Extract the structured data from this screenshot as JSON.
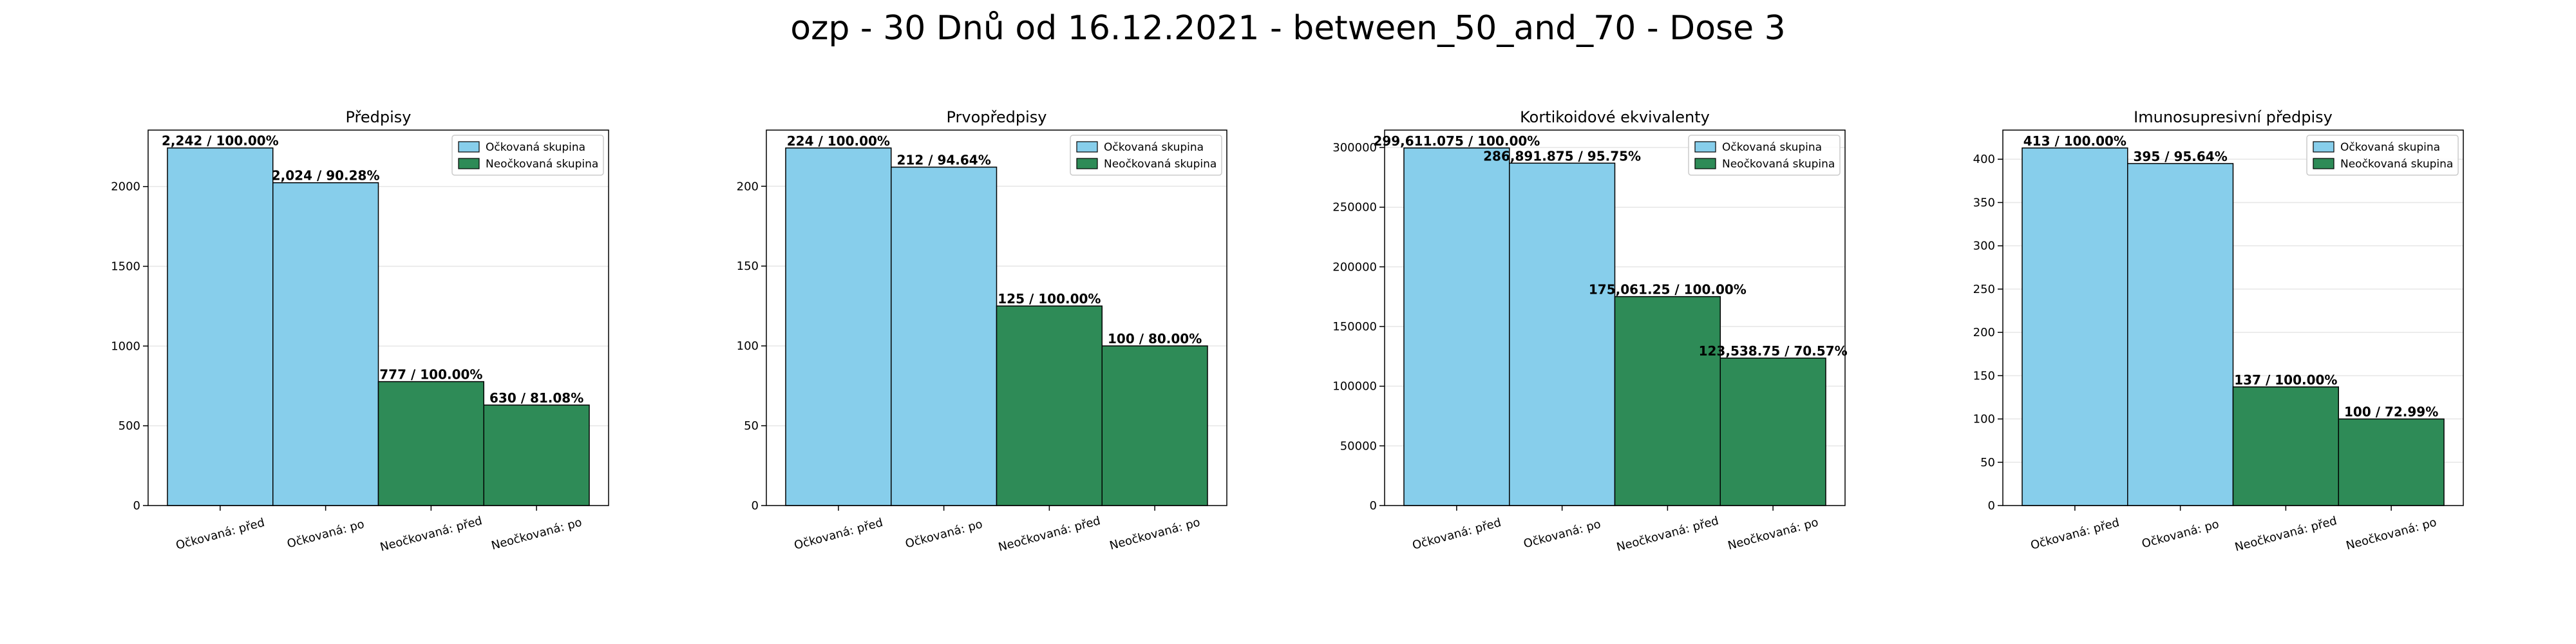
{
  "figure": {
    "suptitle": "ozp - 30 Dnů od 16.12.2021 - between_50_and_70 - Dose 3"
  },
  "colors": {
    "vaccinated": "#87CEEB",
    "unvaccinated": "#2E8B57",
    "bar_edge": "#000000",
    "grid": "#e6e6e6"
  },
  "chart_data": [
    {
      "type": "bar",
      "title": "Předpisy",
      "categories": [
        "Očkovaná: před",
        "Očkovaná: po",
        "Neočkovaná: před",
        "Neočkovaná: po"
      ],
      "values": [
        2242,
        2024,
        777,
        630
      ],
      "value_labels": [
        "2,242 / 100.00%",
        "2,024 / 90.28%",
        "777 / 100.00%",
        "630 / 81.08%"
      ],
      "bar_groups": [
        "vaccinated",
        "vaccinated",
        "unvaccinated",
        "unvaccinated"
      ],
      "yticks": [
        "0",
        "500",
        "1000",
        "1500",
        "2000"
      ],
      "ytick_values": [
        0,
        500,
        1000,
        1500,
        2000
      ],
      "ylim": [
        0,
        2354
      ],
      "legend": [
        "Očkovaná skupina",
        "Neočkovaná skupina"
      ],
      "legend_position": "top-right",
      "grid": true
    },
    {
      "type": "bar",
      "title": "Prvopředpisy",
      "categories": [
        "Očkovaná: před",
        "Očkovaná: po",
        "Neočkovaná: před",
        "Neočkovaná: po"
      ],
      "values": [
        224,
        212,
        125,
        100
      ],
      "value_labels": [
        "224 / 100.00%",
        "212 / 94.64%",
        "125 / 100.00%",
        "100 / 80.00%"
      ],
      "bar_groups": [
        "vaccinated",
        "vaccinated",
        "unvaccinated",
        "unvaccinated"
      ],
      "yticks": [
        "0",
        "50",
        "100",
        "150",
        "200"
      ],
      "ytick_values": [
        0,
        50,
        100,
        150,
        200
      ],
      "ylim": [
        0,
        235.2
      ],
      "legend": [
        "Očkovaná skupina",
        "Neočkovaná skupina"
      ],
      "legend_position": "top-right",
      "grid": true
    },
    {
      "type": "bar",
      "title": "Kortikoidové ekvivalenty",
      "categories": [
        "Očkovaná: před",
        "Očkovaná: po",
        "Neočkovaná: před",
        "Neočkovaná: po"
      ],
      "values": [
        299611.075,
        286891.875,
        175061.25,
        123538.75
      ],
      "value_labels": [
        "299,611.075 / 100.00%",
        "286,891.875 / 95.75%",
        "175,061.25 / 100.00%",
        "123,538.75 / 70.57%"
      ],
      "bar_groups": [
        "vaccinated",
        "vaccinated",
        "unvaccinated",
        "unvaccinated"
      ],
      "yticks": [
        "0",
        "50000",
        "100000",
        "150000",
        "200000",
        "250000",
        "300000"
      ],
      "ytick_values": [
        0,
        50000,
        100000,
        150000,
        200000,
        250000,
        300000
      ],
      "ylim": [
        0,
        314592
      ],
      "legend": [
        "Očkovaná skupina",
        "Neočkovaná skupina"
      ],
      "legend_position": "top-right",
      "grid": true
    },
    {
      "type": "bar",
      "title": "Imunosupresivní předpisy",
      "categories": [
        "Očkovaná: před",
        "Očkovaná: po",
        "Neočkovaná: před",
        "Neočkovaná: po"
      ],
      "values": [
        413,
        395,
        137,
        100
      ],
      "value_labels": [
        "413 / 100.00%",
        "395 / 95.64%",
        "137 / 100.00%",
        "100 / 72.99%"
      ],
      "bar_groups": [
        "vaccinated",
        "vaccinated",
        "unvaccinated",
        "unvaccinated"
      ],
      "yticks": [
        "0",
        "50",
        "100",
        "150",
        "200",
        "250",
        "300",
        "350",
        "400"
      ],
      "ytick_values": [
        0,
        50,
        100,
        150,
        200,
        250,
        300,
        350,
        400
      ],
      "ylim": [
        0,
        433.65
      ],
      "legend": [
        "Očkovaná skupina",
        "Neočkovaná skupina"
      ],
      "legend_position": "top-right",
      "grid": true
    }
  ]
}
